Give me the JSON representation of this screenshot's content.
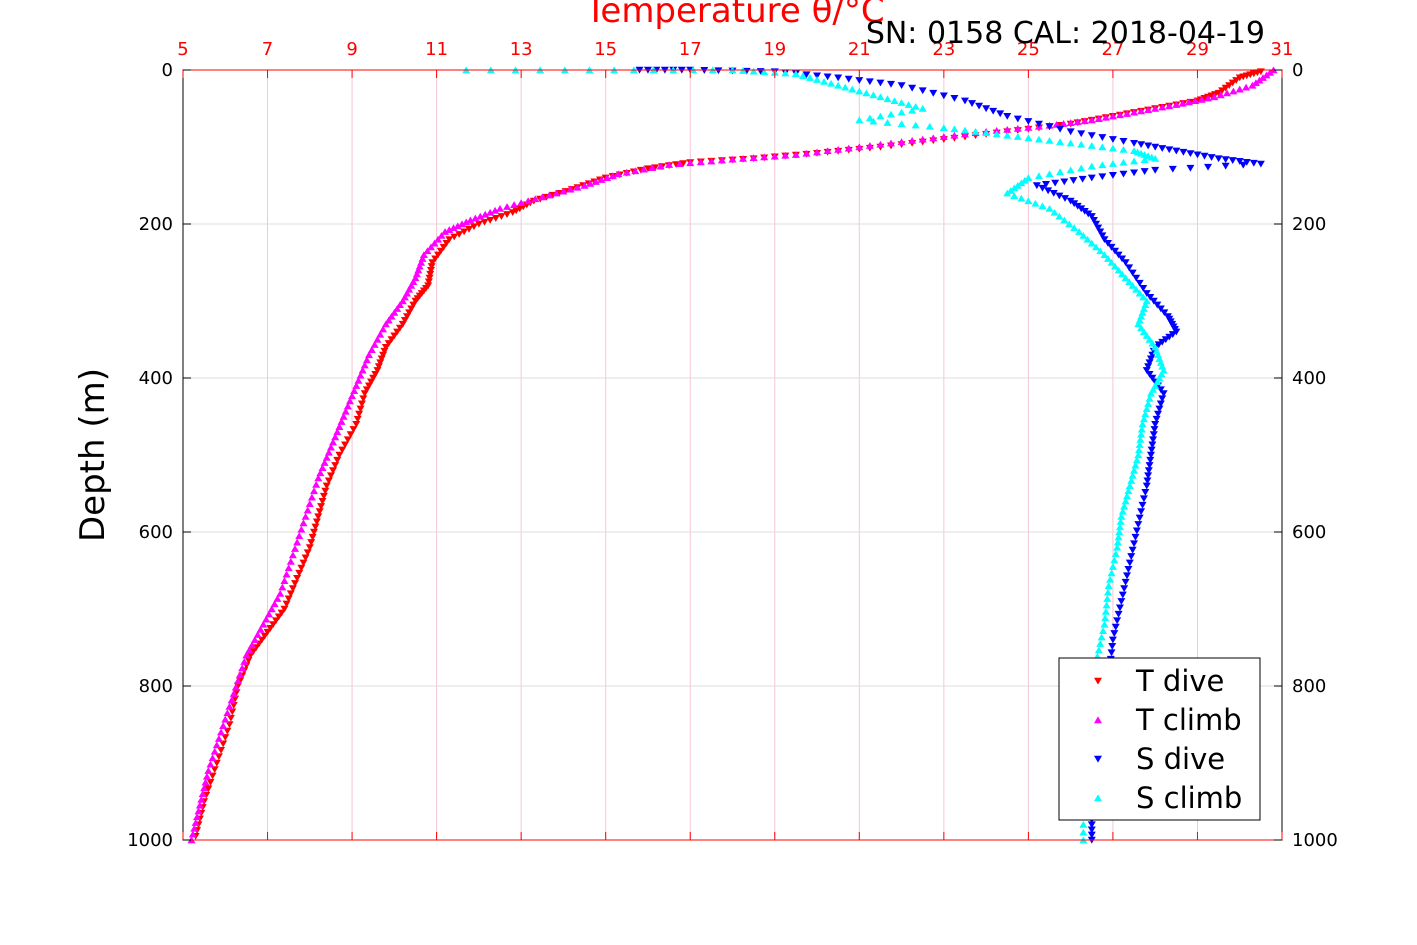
{
  "chart_data": {
    "type": "scatter",
    "title": "Temperature θ/°C",
    "annotation": "SN: 0158  CAL: 2018-04-19",
    "ylabel": "Depth (m)",
    "x_axis_top": {
      "label": "Temperature θ/°C",
      "range": [
        5,
        31
      ],
      "ticks": [
        "5",
        "7",
        "9",
        "11",
        "13",
        "15",
        "17",
        "19",
        "21",
        "23",
        "25",
        "27",
        "29",
        "31"
      ],
      "color": "#ff0000"
    },
    "y_axis": {
      "range": [
        0,
        1000
      ],
      "inverted": true,
      "ticks": [
        "0",
        "200",
        "400",
        "600",
        "800",
        "1000"
      ]
    },
    "grid": true,
    "legend": {
      "position": "bottom-right"
    },
    "series": [
      {
        "name": "T dive",
        "marker": "triangle-down",
        "color": "#ff0000",
        "points": [
          [
            30.5,
            2
          ],
          [
            30.0,
            10
          ],
          [
            29.5,
            30
          ],
          [
            29.0,
            40
          ],
          [
            28.0,
            50
          ],
          [
            27.0,
            60
          ],
          [
            26.0,
            70
          ],
          [
            24.5,
            80
          ],
          [
            23.0,
            90
          ],
          [
            21.5,
            100
          ],
          [
            20.0,
            108
          ],
          [
            18.5,
            115
          ],
          [
            17.0,
            120
          ],
          [
            16.0,
            128
          ],
          [
            15.0,
            140
          ],
          [
            14.2,
            155
          ],
          [
            13.3,
            170
          ],
          [
            12.8,
            185
          ],
          [
            12.0,
            200
          ],
          [
            11.3,
            220
          ],
          [
            10.9,
            250
          ],
          [
            10.8,
            280
          ],
          [
            10.5,
            300
          ],
          [
            10.2,
            330
          ],
          [
            9.8,
            360
          ],
          [
            9.6,
            390
          ],
          [
            9.3,
            420
          ],
          [
            9.1,
            460
          ],
          [
            8.7,
            500
          ],
          [
            8.4,
            540
          ],
          [
            8.2,
            580
          ],
          [
            8.0,
            620
          ],
          [
            7.7,
            660
          ],
          [
            7.4,
            700
          ],
          [
            7.0,
            730
          ],
          [
            6.6,
            760
          ],
          [
            6.3,
            800
          ],
          [
            6.1,
            850
          ],
          [
            5.8,
            900
          ],
          [
            5.5,
            950
          ],
          [
            5.3,
            995
          ]
        ]
      },
      {
        "name": "T climb",
        "marker": "triangle-up",
        "color": "#ff00ff",
        "points": [
          [
            30.8,
            0
          ],
          [
            30.3,
            20
          ],
          [
            29.4,
            35
          ],
          [
            28.5,
            45
          ],
          [
            27.5,
            55
          ],
          [
            26.5,
            65
          ],
          [
            25.5,
            72
          ],
          [
            24.0,
            80
          ],
          [
            22.5,
            90
          ],
          [
            21.0,
            100
          ],
          [
            19.5,
            110
          ],
          [
            18.0,
            116
          ],
          [
            16.5,
            123
          ],
          [
            15.3,
            135
          ],
          [
            14.5,
            150
          ],
          [
            13.5,
            165
          ],
          [
            12.5,
            180
          ],
          [
            11.8,
            195
          ],
          [
            11.2,
            210
          ],
          [
            10.7,
            240
          ],
          [
            10.5,
            270
          ],
          [
            10.2,
            300
          ],
          [
            9.8,
            330
          ],
          [
            9.4,
            370
          ],
          [
            9.1,
            410
          ],
          [
            8.8,
            450
          ],
          [
            8.5,
            490
          ],
          [
            8.2,
            530
          ],
          [
            7.9,
            580
          ],
          [
            7.6,
            630
          ],
          [
            7.3,
            680
          ],
          [
            6.9,
            720
          ],
          [
            6.5,
            760
          ],
          [
            6.2,
            810
          ],
          [
            5.9,
            860
          ],
          [
            5.6,
            910
          ],
          [
            5.4,
            955
          ],
          [
            5.2,
            1000
          ]
        ]
      },
      {
        "name": "S dive",
        "marker": "triangle-down",
        "color": "#0000ff",
        "points": [
          [
            15.8,
            0
          ],
          [
            17.0,
            0
          ],
          [
            19.0,
            2
          ],
          [
            20.5,
            10
          ],
          [
            22.0,
            20
          ],
          [
            23.5,
            40
          ],
          [
            24.5,
            60
          ],
          [
            26.0,
            80
          ],
          [
            27.5,
            95
          ],
          [
            28.5,
            105
          ],
          [
            29.5,
            115
          ],
          [
            30.5,
            122
          ],
          [
            28.0,
            130
          ],
          [
            26.5,
            140
          ],
          [
            25.2,
            150
          ],
          [
            26.0,
            170
          ],
          [
            26.5,
            190
          ],
          [
            26.8,
            220
          ],
          [
            27.3,
            250
          ],
          [
            27.8,
            290
          ],
          [
            28.3,
            320
          ],
          [
            28.5,
            340
          ],
          [
            28.0,
            360
          ],
          [
            27.8,
            390
          ],
          [
            28.2,
            420
          ],
          [
            28.0,
            460
          ],
          [
            27.9,
            500
          ],
          [
            27.8,
            540
          ],
          [
            27.6,
            590
          ],
          [
            27.4,
            640
          ],
          [
            27.2,
            690
          ],
          [
            27.0,
            740
          ],
          [
            26.9,
            790
          ],
          [
            26.7,
            840
          ],
          [
            26.6,
            900
          ],
          [
            26.5,
            960
          ],
          [
            26.5,
            1000
          ]
        ]
      },
      {
        "name": "S climb",
        "marker": "triangle-up",
        "color": "#00ffff",
        "points": [
          [
            11.7,
            0
          ],
          [
            15.2,
            0
          ],
          [
            18.0,
            0
          ],
          [
            19.5,
            5
          ],
          [
            20.5,
            20
          ],
          [
            21.5,
            35
          ],
          [
            22.5,
            50
          ],
          [
            21.0,
            65
          ],
          [
            23.0,
            75
          ],
          [
            24.5,
            85
          ],
          [
            26.0,
            95
          ],
          [
            27.5,
            105
          ],
          [
            28.0,
            115
          ],
          [
            26.5,
            125
          ],
          [
            25.0,
            140
          ],
          [
            24.5,
            160
          ],
          [
            25.5,
            180
          ],
          [
            26.2,
            210
          ],
          [
            26.8,
            240
          ],
          [
            27.3,
            270
          ],
          [
            27.8,
            300
          ],
          [
            27.6,
            330
          ],
          [
            28.0,
            360
          ],
          [
            28.2,
            390
          ],
          [
            27.9,
            420
          ],
          [
            27.7,
            460
          ],
          [
            27.6,
            500
          ],
          [
            27.4,
            540
          ],
          [
            27.2,
            580
          ],
          [
            27.1,
            620
          ],
          [
            26.9,
            670
          ],
          [
            26.8,
            720
          ],
          [
            26.6,
            770
          ],
          [
            26.5,
            820
          ],
          [
            26.4,
            880
          ],
          [
            26.3,
            940
          ],
          [
            26.3,
            1000
          ]
        ]
      }
    ]
  }
}
